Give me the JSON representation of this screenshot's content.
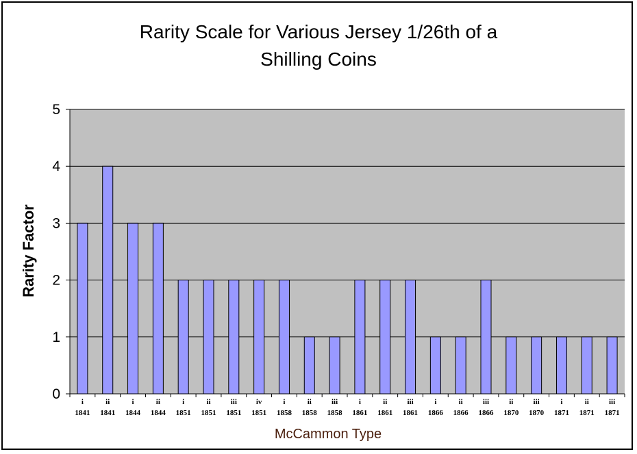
{
  "chart_data": {
    "type": "bar",
    "title": "Rarity Scale for Various Jersey 1/26th of a Shilling Coins",
    "title_lines": [
      "Rarity Scale for Various Jersey 1/26th of a",
      "Shilling Coins"
    ],
    "xlabel": "McCammon Type",
    "ylabel": "Rarity Factor",
    "ylim": [
      0,
      5
    ],
    "yticks": [
      "0",
      "1",
      "2",
      "3",
      "4",
      "5"
    ],
    "grid": true,
    "legend": "none",
    "categories": [
      {
        "type": "i",
        "year": "1841"
      },
      {
        "type": "ii",
        "year": "1841"
      },
      {
        "type": "i",
        "year": "1844"
      },
      {
        "type": "ii",
        "year": "1844"
      },
      {
        "type": "i",
        "year": "1851"
      },
      {
        "type": "ii",
        "year": "1851"
      },
      {
        "type": "iii",
        "year": "1851"
      },
      {
        "type": "iv",
        "year": "1851"
      },
      {
        "type": "i",
        "year": "1858"
      },
      {
        "type": "ii",
        "year": "1858"
      },
      {
        "type": "iii",
        "year": "1858"
      },
      {
        "type": "i",
        "year": "1861"
      },
      {
        "type": "ii",
        "year": "1861"
      },
      {
        "type": "iii",
        "year": "1861"
      },
      {
        "type": "i",
        "year": "1866"
      },
      {
        "type": "ii",
        "year": "1866"
      },
      {
        "type": "iii",
        "year": "1866"
      },
      {
        "type": "ii",
        "year": "1870"
      },
      {
        "type": "iii",
        "year": "1870"
      },
      {
        "type": "i",
        "year": "1871"
      },
      {
        "type": "ii",
        "year": "1871"
      },
      {
        "type": "iii",
        "year": "1871"
      }
    ],
    "values": [
      3,
      4,
      3,
      3,
      2,
      2,
      2,
      2,
      2,
      1,
      1,
      2,
      2,
      2,
      1,
      1,
      2,
      1,
      1,
      1,
      1,
      1
    ],
    "colors": {
      "bar_fill": "#9999ff",
      "bar_stroke": "#000000",
      "plot_background": "#c0c0c0",
      "gridline": "#000000",
      "xlabel_color": "#4a1e0c"
    }
  }
}
